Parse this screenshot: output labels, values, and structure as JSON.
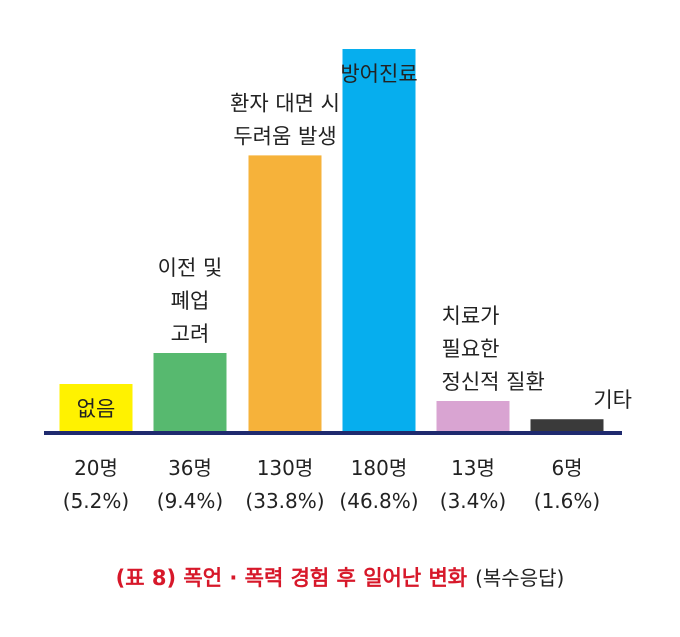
{
  "chart_data": {
    "type": "bar",
    "categories": [
      [
        "없음"
      ],
      [
        "이전 및",
        "폐업",
        "고려"
      ],
      [
        "환자 대면 시",
        "두려움 발생"
      ],
      [
        "방어진료"
      ],
      [
        "치료가",
        "필요한",
        "정신적 질환"
      ],
      [
        "기타"
      ]
    ],
    "counts": [
      "20명",
      "36명",
      "130명",
      "180명",
      "13명",
      "6명"
    ],
    "percents": [
      "(5.2%)",
      "(9.4%)",
      "(33.8%)",
      "(46.8%)",
      "(3.4%)",
      "(1.6%)"
    ],
    "values": [
      20,
      36,
      130,
      180,
      13,
      6
    ],
    "colors": [
      "#fff200",
      "#57b96f",
      "#f6b23a",
      "#06aeee",
      "#d9a4d2",
      "#3a3a3a"
    ],
    "axis_color": "#1f2a6e",
    "label_inside": [
      true,
      false,
      false,
      true,
      false,
      false
    ],
    "ylim": [
      0,
      180
    ]
  },
  "caption": {
    "main": "(표 8)  폭언 · 폭력 경험 후 일어난 변화",
    "sub": "(복수응답)",
    "main_color": "#d7182a"
  }
}
